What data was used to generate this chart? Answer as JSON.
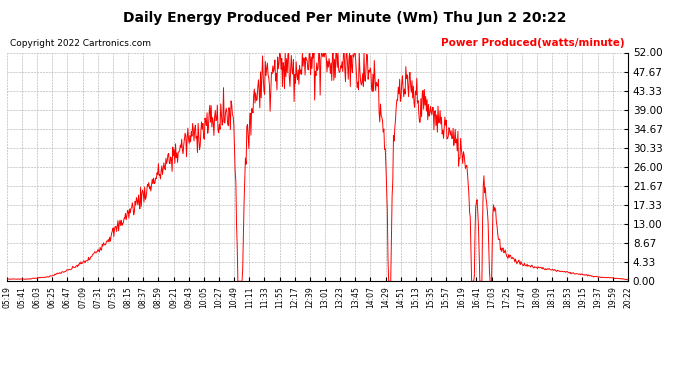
{
  "title": "Daily Energy Produced Per Minute (Wm) Thu Jun 2 20:22",
  "copyright_text": "Copyright 2022 Cartronics.com",
  "legend_label": "Power Produced(watts/minute)",
  "legend_color": "red",
  "copyright_color": "black",
  "title_color": "black",
  "background_color": "white",
  "line_color": "red",
  "grid_color": "#aaaaaa",
  "yticks": [
    0.0,
    4.33,
    8.67,
    13.0,
    17.33,
    21.67,
    26.0,
    30.33,
    34.67,
    39.0,
    43.33,
    47.67,
    52.0
  ],
  "ymin": 0.0,
  "ymax": 52.0,
  "x_tick_labels": [
    "05:19",
    "05:41",
    "06:03",
    "06:25",
    "06:47",
    "07:09",
    "07:31",
    "07:53",
    "08:15",
    "08:37",
    "08:59",
    "09:21",
    "09:43",
    "10:05",
    "10:27",
    "10:49",
    "11:11",
    "11:33",
    "11:55",
    "12:17",
    "12:39",
    "13:01",
    "13:23",
    "13:45",
    "14:07",
    "14:29",
    "14:51",
    "15:13",
    "15:35",
    "15:57",
    "16:19",
    "16:41",
    "17:03",
    "17:25",
    "17:47",
    "18:09",
    "18:31",
    "18:53",
    "19:15",
    "19:37",
    "19:59",
    "20:22"
  ]
}
